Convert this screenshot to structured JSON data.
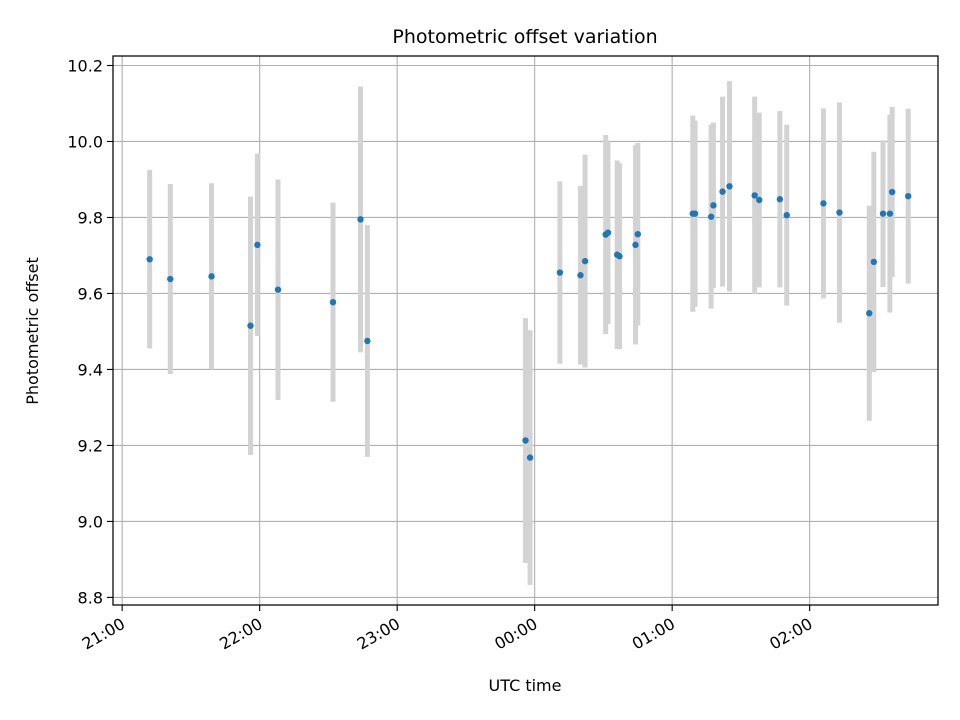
{
  "chart_data": {
    "type": "scatter",
    "title": "Photometric offset variation",
    "xlabel": "UTC time",
    "ylabel": "Photometric offset",
    "grid": true,
    "x_ticks": [
      "21:00",
      "22:00",
      "23:00",
      "00:00",
      "01:00",
      "02:00"
    ],
    "y_ticks": [
      "8.8",
      "9.0",
      "9.2",
      "9.4",
      "9.6",
      "9.8",
      "10.0",
      "10.2"
    ],
    "ylim": [
      8.78,
      10.225
    ],
    "xlim": [
      "20:56",
      "02:56"
    ],
    "colors": {
      "point": "#1f77b4",
      "errorbar": "#d3d3d3",
      "grid": "#b0b0b0"
    },
    "series": [
      {
        "points": [
          {
            "x": "21:12",
            "y": 9.69,
            "err": 0.235
          },
          {
            "x": "21:21",
            "y": 9.638,
            "err": 0.25
          },
          {
            "x": "21:39",
            "y": 9.645,
            "err": 0.245
          },
          {
            "x": "21:56",
            "y": 9.515,
            "err": 0.34
          },
          {
            "x": "21:59",
            "y": 9.728,
            "err": 0.24
          },
          {
            "x": "22:08",
            "y": 9.61,
            "err": 0.29
          },
          {
            "x": "22:32",
            "y": 9.577,
            "err": 0.262
          },
          {
            "x": "22:44",
            "y": 9.795,
            "err": 0.35
          },
          {
            "x": "22:47",
            "y": 9.475,
            "err": 0.305
          },
          {
            "x": "23:56",
            "y": 9.213,
            "err": 0.322
          },
          {
            "x": "23:58",
            "y": 9.168,
            "err": 0.335
          },
          {
            "x": "00:11",
            "y": 9.655,
            "err": 0.24
          },
          {
            "x": "00:20",
            "y": 9.648,
            "err": 0.235
          },
          {
            "x": "00:22",
            "y": 9.685,
            "err": 0.28
          },
          {
            "x": "00:31",
            "y": 9.755,
            "err": 0.262
          },
          {
            "x": "00:32",
            "y": 9.76,
            "err": 0.24
          },
          {
            "x": "00:36",
            "y": 9.702,
            "err": 0.248
          },
          {
            "x": "00:37",
            "y": 9.698,
            "err": 0.245
          },
          {
            "x": "00:44",
            "y": 9.728,
            "err": 0.262
          },
          {
            "x": "00:45",
            "y": 9.756,
            "err": 0.24
          },
          {
            "x": "01:09",
            "y": 9.81,
            "err": 0.258
          },
          {
            "x": "01:10",
            "y": 9.81,
            "err": 0.245
          },
          {
            "x": "01:17",
            "y": 9.802,
            "err": 0.242
          },
          {
            "x": "01:18",
            "y": 9.832,
            "err": 0.218
          },
          {
            "x": "01:22",
            "y": 9.868,
            "err": 0.25
          },
          {
            "x": "01:25",
            "y": 9.882,
            "err": 0.277
          },
          {
            "x": "01:36",
            "y": 9.858,
            "err": 0.26
          },
          {
            "x": "01:38",
            "y": 9.846,
            "err": 0.23
          },
          {
            "x": "01:47",
            "y": 9.848,
            "err": 0.232
          },
          {
            "x": "01:50",
            "y": 9.806,
            "err": 0.238
          },
          {
            "x": "02:06",
            "y": 9.837,
            "err": 0.25
          },
          {
            "x": "02:13",
            "y": 9.813,
            "err": 0.29
          },
          {
            "x": "02:26",
            "y": 9.548,
            "err": 0.283
          },
          {
            "x": "02:28",
            "y": 9.683,
            "err": 0.29
          },
          {
            "x": "02:32",
            "y": 9.81,
            "err": 0.193
          },
          {
            "x": "02:35",
            "y": 9.81,
            "err": 0.26
          },
          {
            "x": "02:36",
            "y": 9.867,
            "err": 0.224
          },
          {
            "x": "02:43",
            "y": 9.856,
            "err": 0.23
          }
        ]
      }
    ]
  }
}
